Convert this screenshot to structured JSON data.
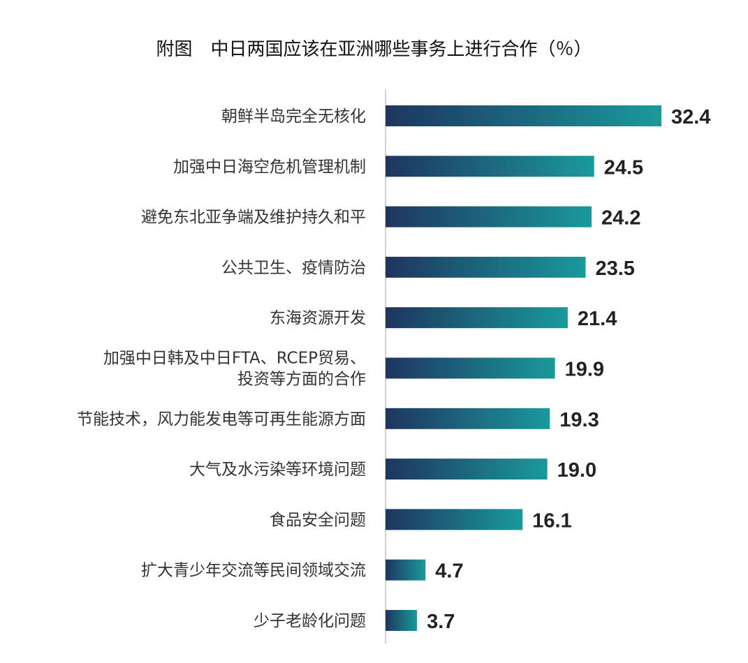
{
  "chart_data": {
    "type": "bar",
    "orientation": "horizontal",
    "title": "附图　中日两国应该在亚洲哪些事务上进行合作（％）",
    "categories": [
      [
        "朝鲜半岛完全无核化"
      ],
      [
        "加强中日海空危机管理机制"
      ],
      [
        "避免东北亚争端及维护持久和平"
      ],
      [
        "公共卫生、疫情防治"
      ],
      [
        "东海资源开发"
      ],
      [
        "加强中日韩及中日FTA、RCEP贸易、",
        "投资等方面的合作"
      ],
      [
        "节能技术，风力能发电等可再生能源方面"
      ],
      [
        "大气及水污染等环境问题"
      ],
      [
        "食品安全问题"
      ],
      [
        "扩大青少年交流等民间领域交流"
      ],
      [
        "少子老龄化问题"
      ]
    ],
    "values": [
      32.4,
      24.5,
      24.2,
      23.5,
      21.4,
      19.9,
      19.3,
      19.0,
      16.1,
      4.7,
      3.7
    ],
    "value_labels": [
      "32.4",
      "24.5",
      "24.2",
      "23.5",
      "21.4",
      "19.9",
      "19.3",
      "19.0",
      "16.1",
      "4.7",
      "3.7"
    ],
    "xlim": [
      0,
      32.4
    ],
    "grid": false,
    "legend": "none",
    "colors": {
      "bar_start": "#1e3560",
      "bar_end": "#1a9a9a",
      "axis": "#cfcfcf"
    }
  }
}
